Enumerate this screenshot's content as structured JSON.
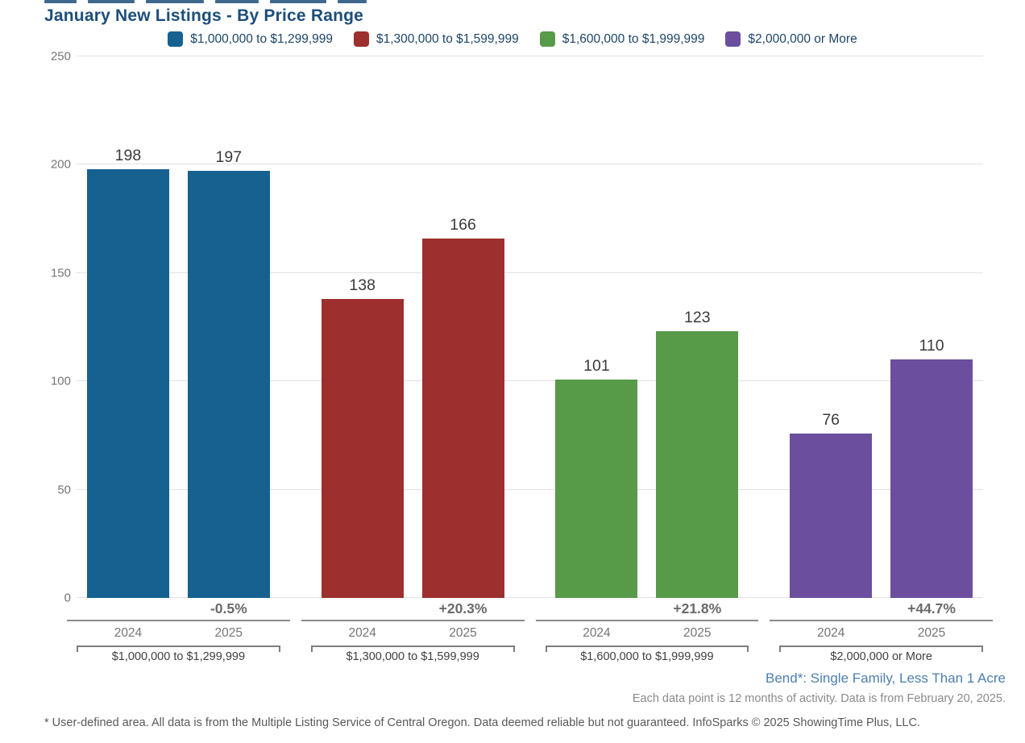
{
  "header": {
    "title": "January New Listings - By Price Range",
    "title_color": "#1d4e79"
  },
  "chart_data": {
    "type": "bar",
    "title": "January New Listings - By Price Range",
    "categories": [
      "$1,000,000 to $1,299,999",
      "$1,300,000 to $1,599,999",
      "$1,600,000 to $1,999,999",
      "$2,000,000 or More"
    ],
    "series": [
      {
        "name": "2024",
        "values": [
          198,
          138,
          101,
          76
        ]
      },
      {
        "name": "2025",
        "values": [
          197,
          166,
          123,
          110
        ]
      }
    ],
    "pct_change": [
      "-0.5%",
      "+20.3%",
      "+21.8%",
      "+44.7%"
    ],
    "group_colors": [
      "#16618f",
      "#9e2f2f",
      "#579a48",
      "#6b4f9e"
    ],
    "ylim": [
      0,
      250
    ],
    "yticks": [
      0,
      50,
      100,
      150,
      200,
      250
    ],
    "grid": true,
    "legend_position": "top",
    "legend_items": [
      {
        "label": "$1,000,000 to $1,299,999",
        "color": "#16618f"
      },
      {
        "label": "$1,300,000 to $1,599,999",
        "color": "#9e2f2f"
      },
      {
        "label": "$1,600,000 to $1,999,999",
        "color": "#579a48"
      },
      {
        "label": "$2,000,000 or More",
        "color": "#6b4f9e"
      }
    ],
    "x_year_labels": [
      "2024",
      "2025"
    ]
  },
  "footer": {
    "area_note": "Bend*: Single Family, Less Than 1 Acre",
    "data_note": "Each data point is 12 months of activity. Data is from February 20, 2025.",
    "disclaimer": "* User-defined area. All data is from the Multiple Listing Service of Central Oregon. Data deemed reliable but not guaranteed. InfoSparks © 2025 ShowingTime Plus, LLC."
  }
}
